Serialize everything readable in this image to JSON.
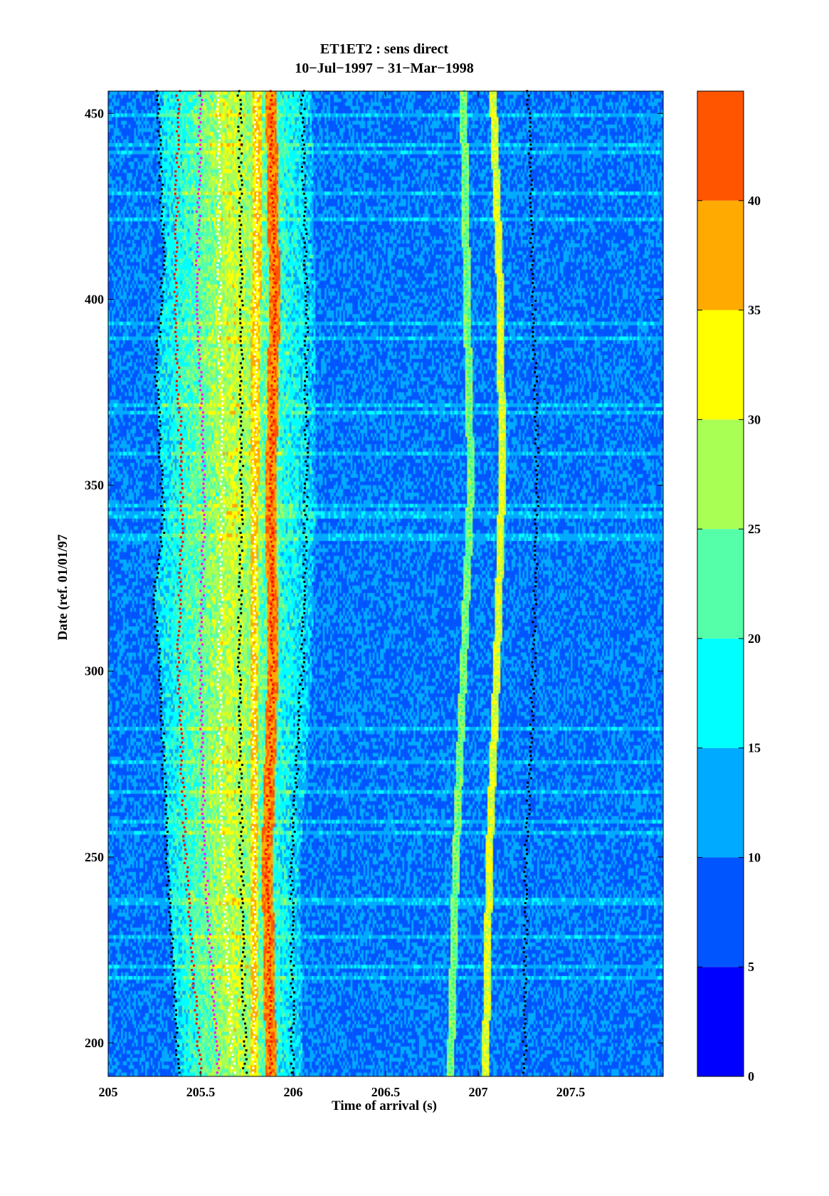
{
  "chart_data": {
    "type": "heatmap",
    "title": "ET1ET2 : sens direct",
    "subtitle": "10−Jul−1997 − 31−Mar−1998",
    "xlabel": "Time of arrival (s)",
    "ylabel": "Date (ref. 01/01/97",
    "xlim": [
      205,
      208
    ],
    "ylim": [
      191,
      456
    ],
    "x_ticks": [
      205,
      205.5,
      206,
      206.5,
      207,
      207.5
    ],
    "x_tick_labels": [
      "205",
      "205.5",
      "206",
      "206.5",
      "207",
      "207.5"
    ],
    "y_ticks": [
      200,
      250,
      300,
      350,
      400,
      450
    ],
    "y_tick_labels": [
      "200",
      "250",
      "300",
      "350",
      "400",
      "450"
    ],
    "colorbar": {
      "range": [
        0,
        45
      ],
      "levels": [
        0,
        5,
        10,
        15,
        20,
        25,
        30,
        35,
        40,
        45
      ],
      "tick_labels": [
        "0",
        "5",
        "10",
        "15",
        "20",
        "25",
        "30",
        "35",
        "40"
      ],
      "colors": [
        "#0000ff",
        "#0055ff",
        "#00aaff",
        "#00ffff",
        "#55ffaa",
        "#aaff55",
        "#ffff00",
        "#ffaa00",
        "#ff5500"
      ]
    },
    "arrival_tracks": [
      {
        "points": [
          [
            191,
            205.38
          ],
          [
            250,
            205.32
          ],
          [
            300,
            205.28
          ],
          [
            320,
            205.25
          ],
          [
            340,
            205.3
          ],
          [
            380,
            205.26
          ],
          [
            410,
            205.3
          ],
          [
            456,
            205.27
          ]
        ],
        "marker": "black"
      },
      {
        "points": [
          [
            191,
            205.5
          ],
          [
            250,
            205.42
          ],
          [
            300,
            205.38
          ],
          [
            350,
            205.4
          ],
          [
            400,
            205.36
          ],
          [
            456,
            205.38
          ]
        ],
        "marker": "red"
      },
      {
        "points": [
          [
            191,
            205.6
          ],
          [
            250,
            205.52
          ],
          [
            300,
            205.5
          ],
          [
            350,
            205.52
          ],
          [
            400,
            205.48
          ],
          [
            456,
            205.5
          ]
        ],
        "marker": "magenta"
      },
      {
        "points": [
          [
            191,
            205.68
          ],
          [
            250,
            205.62
          ],
          [
            300,
            205.6
          ],
          [
            350,
            205.62
          ],
          [
            400,
            205.6
          ],
          [
            456,
            205.6
          ]
        ],
        "marker": "white"
      },
      {
        "points": [
          [
            191,
            205.74
          ],
          [
            250,
            205.72
          ],
          [
            300,
            205.71
          ],
          [
            350,
            205.72
          ],
          [
            400,
            205.72
          ],
          [
            456,
            205.71
          ]
        ],
        "marker": "black"
      },
      {
        "points": [
          [
            191,
            205.79
          ],
          [
            250,
            205.79
          ],
          [
            300,
            205.79
          ],
          [
            350,
            205.79
          ],
          [
            400,
            205.8
          ],
          [
            456,
            205.8
          ]
        ],
        "marker": "white"
      },
      {
        "points": [
          [
            191,
            205.88
          ],
          [
            250,
            205.86
          ],
          [
            300,
            205.89
          ],
          [
            350,
            205.88
          ],
          [
            400,
            205.9
          ],
          [
            456,
            205.88
          ]
        ],
        "marker": "red"
      },
      {
        "points": [
          [
            191,
            206.0
          ],
          [
            250,
            205.99
          ],
          [
            300,
            206.05
          ],
          [
            350,
            206.07
          ],
          [
            400,
            206.07
          ],
          [
            456,
            206.05
          ]
        ],
        "marker": "black"
      },
      {
        "points": [
          [
            191,
            206.85
          ],
          [
            250,
            206.88
          ],
          [
            300,
            206.92
          ],
          [
            350,
            206.96
          ],
          [
            400,
            206.94
          ],
          [
            456,
            206.92
          ]
        ],
        "marker": "green"
      },
      {
        "points": [
          [
            191,
            207.04
          ],
          [
            250,
            207.06
          ],
          [
            300,
            207.1
          ],
          [
            350,
            207.13
          ],
          [
            400,
            207.12
          ],
          [
            456,
            207.08
          ]
        ],
        "marker": "yellow"
      },
      {
        "points": [
          [
            191,
            207.25
          ],
          [
            250,
            207.26
          ],
          [
            300,
            207.3
          ],
          [
            350,
            207.32
          ],
          [
            400,
            207.3
          ],
          [
            456,
            207.27
          ]
        ],
        "marker": "black"
      }
    ],
    "grid": false
  }
}
